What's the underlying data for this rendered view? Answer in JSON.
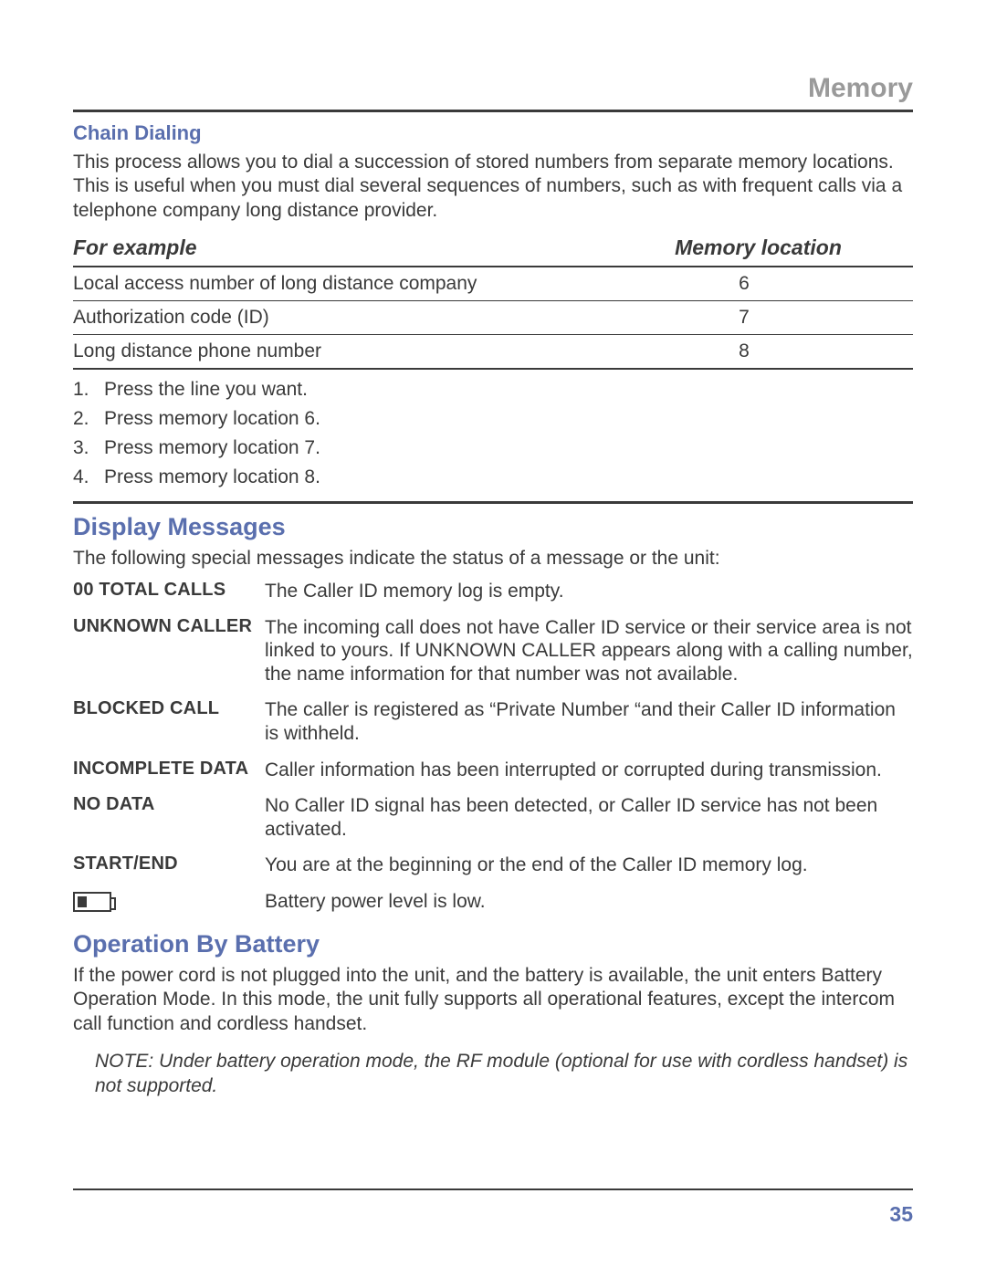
{
  "header": {
    "title": "Memory"
  },
  "chain": {
    "heading": "Chain Dialing",
    "intro": "This process allows you to dial a succession of stored numbers from separate memory locations. This is useful when you must dial several sequences of numbers, such as with frequent calls via a telephone  company long distance provider.",
    "col1": "For example",
    "col2": "Memory location",
    "rows": [
      {
        "name": "Local access number of long distance company",
        "loc": "6"
      },
      {
        "name": "Authorization code (ID)",
        "loc": "7"
      },
      {
        "name": "Long distance phone number",
        "loc": "8"
      }
    ],
    "steps": [
      "Press the line you want.",
      "Press memory location 6.",
      "Press memory location 7.",
      "Press memory location 8."
    ]
  },
  "display": {
    "heading": "Display Messages",
    "intro": "The following special messages indicate the status of a message or the unit:",
    "rows": [
      {
        "label": "00  TOTAL CALLS",
        "text": "The Caller ID memory log is empty."
      },
      {
        "label": "UNKNOWN CALLER",
        "text": "The incoming call does not have Caller ID service or their service area is not linked to yours. If UNKNOWN CALLER appears along with a calling number, the name information for that number was not available."
      },
      {
        "label": "BLOCKED CALL",
        "text": "The caller is registered as “Private Number “and their Caller ID information is withheld."
      },
      {
        "label": "INCOMPLETE DATA",
        "text": "Caller information has been interrupted or corrupted during transmission."
      },
      {
        "label": "NO DATA",
        "text": "No Caller ID signal has been detected, or Caller ID service has not been activated."
      },
      {
        "label": "START/END",
        "text": "You are at the beginning or the end of the Caller ID memory log."
      }
    ],
    "battery_text": "Battery power level is low."
  },
  "battery": {
    "heading": "Operation By Battery",
    "text": "If the power cord is not plugged into the unit, and the battery is available, the unit enters Battery Operation Mode. In this mode, the unit fully supports all operational features, except the intercom call function and cordless handset.",
    "note": "NOTE: Under battery operation mode, the RF module (optional for use with cordless handset) is not supported."
  },
  "page_number": "35",
  "colors": {
    "accent": "#5a6fae",
    "muted": "#9a9a9a",
    "text": "#3a3a3a"
  }
}
